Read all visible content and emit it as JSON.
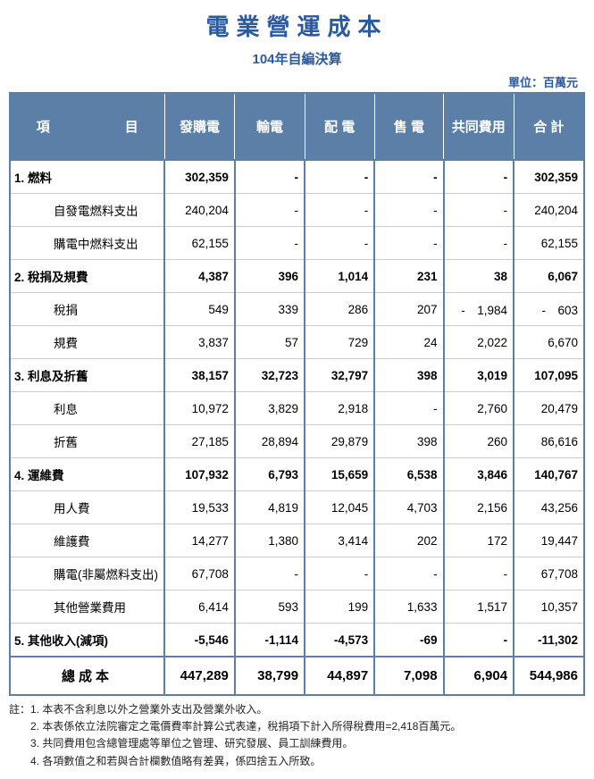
{
  "title_color": "#2b5a9e",
  "header_bg": "#5b7fa7",
  "border_color": "#5b7fa7",
  "title": "電業營運成本",
  "subtitle": "104年自編決算",
  "unit_label": "單位：百萬元",
  "columns": [
    "項　　目",
    "發購電",
    "輸電",
    "配 電",
    "售 電",
    "共同費用",
    "合 計"
  ],
  "rows": [
    {
      "type": "main",
      "label": "1. 燃料",
      "cells": [
        "302,359",
        "-",
        "-",
        "-",
        "-",
        "302,359"
      ]
    },
    {
      "type": "sub",
      "label": "自發電燃料支出",
      "cells": [
        "240,204",
        "-",
        "-",
        "-",
        "-",
        "240,204"
      ]
    },
    {
      "type": "sub",
      "label": "購電中燃料支出",
      "cells": [
        "62,155",
        "-",
        "-",
        "-",
        "-",
        "62,155"
      ]
    },
    {
      "type": "main",
      "label": "2. 稅捐及規費",
      "cells": [
        "4,387",
        "396",
        "1,014",
        "231",
        "38",
        "6,067"
      ]
    },
    {
      "type": "sub",
      "label": "稅捐",
      "cells": [
        "549",
        "339",
        "286",
        "207",
        "-　1,984",
        "-　603"
      ]
    },
    {
      "type": "sub",
      "label": "規費",
      "cells": [
        "3,837",
        "57",
        "729",
        "24",
        "2,022",
        "6,670"
      ]
    },
    {
      "type": "main",
      "label": "3. 利息及折舊",
      "cells": [
        "38,157",
        "32,723",
        "32,797",
        "398",
        "3,019",
        "107,095"
      ]
    },
    {
      "type": "sub",
      "label": "利息",
      "cells": [
        "10,972",
        "3,829",
        "2,918",
        "-",
        "2,760",
        "20,479"
      ]
    },
    {
      "type": "sub",
      "label": "折舊",
      "cells": [
        "27,185",
        "28,894",
        "29,879",
        "398",
        "260",
        "86,616"
      ]
    },
    {
      "type": "main",
      "label": "4. 運維費",
      "cells": [
        "107,932",
        "6,793",
        "15,659",
        "6,538",
        "3,846",
        "140,767"
      ]
    },
    {
      "type": "sub",
      "label": "用人費",
      "cells": [
        "19,533",
        "4,819",
        "12,045",
        "4,703",
        "2,156",
        "43,256"
      ]
    },
    {
      "type": "sub",
      "label": "維護費",
      "cells": [
        "14,277",
        "1,380",
        "3,414",
        "202",
        "172",
        "19,447"
      ]
    },
    {
      "type": "sub",
      "label": "購電(非屬燃料支出)",
      "cells": [
        "67,708",
        "-",
        "-",
        "-",
        "-",
        "67,708"
      ]
    },
    {
      "type": "sub",
      "label": "其他營業費用",
      "cells": [
        "6,414",
        "593",
        "199",
        "1,633",
        "1,517",
        "10,357"
      ]
    },
    {
      "type": "main",
      "label": "5. 其他收入(減項)",
      "cells": [
        "-5,546",
        "-1,114",
        "-4,573",
        "-69",
        "-",
        "-11,302"
      ]
    }
  ],
  "total": {
    "label": "總成本",
    "cells": [
      "447,289",
      "38,799",
      "44,897",
      "7,098",
      "6,904",
      "544,986"
    ]
  },
  "notes_prefix": "註：",
  "notes": [
    "1. 本表不含利息以外之營業外支出及營業外收入。",
    "2. 本表係依立法院審定之電價費率計算公式表達，稅捐項下計入所得稅費用=2,418百萬元。",
    "3. 共同費用包含總管理處等單位之管理、研究發展、員工訓練費用。",
    "4. 各項數值之和若與合計欄數值略有差異，係四捨五入所致。"
  ]
}
